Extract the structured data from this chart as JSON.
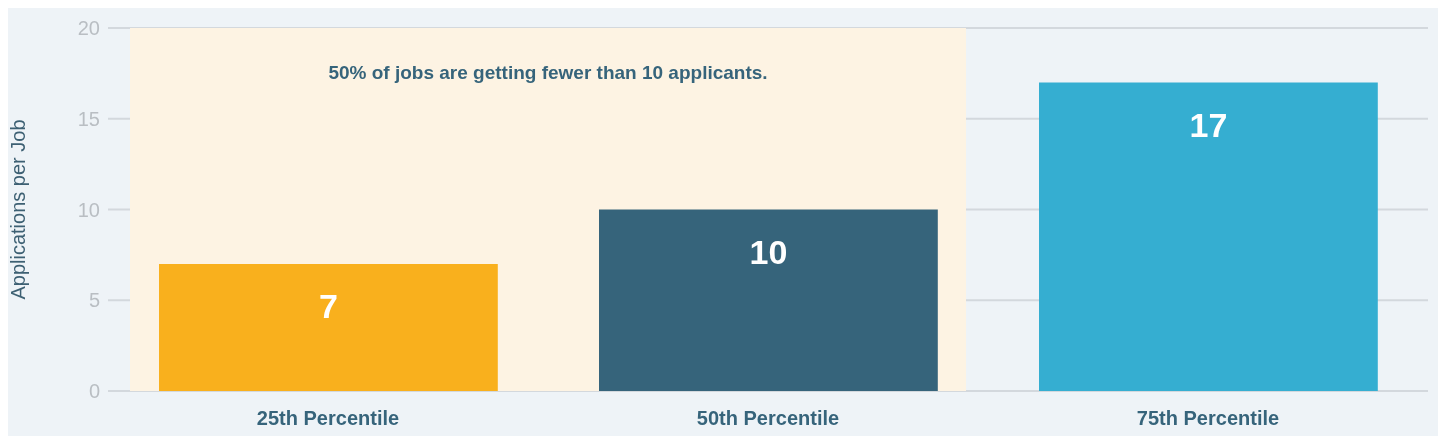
{
  "chart_data": {
    "type": "bar",
    "ylabel": "Applications per Job",
    "categories": [
      "25th Percentile",
      "50th Percentile",
      "75th Percentile"
    ],
    "values": [
      7,
      10,
      17
    ],
    "colors": [
      "#f9b01d",
      "#36647b",
      "#35aed1"
    ],
    "ylim": [
      0,
      20
    ],
    "yticks": [
      0,
      5,
      10,
      15,
      20
    ],
    "grid": "y",
    "data_labels": true,
    "bands": [
      {
        "axis": "x",
        "from": "25th Percentile",
        "to": "50th Percentile",
        "label": "50% of jobs are getting fewer than 10 applicants.",
        "color": "#fdf3e3"
      }
    ]
  }
}
